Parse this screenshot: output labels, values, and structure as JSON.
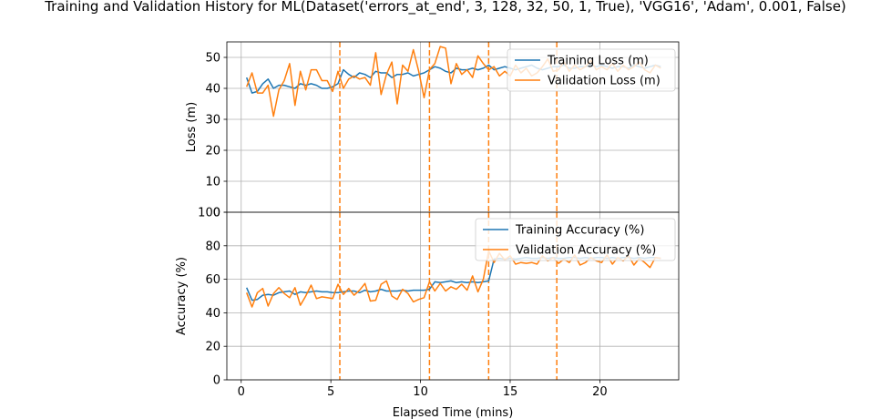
{
  "chart_data": {
    "title": "Training and Validation History for ML(Dataset('errors_at_end', 3, 128, 32, 50, 1, True), 'VGG16', 'Adam', 0.001, False)",
    "xlabel": "Elapsed Time (mins)",
    "xlim": [
      -0.8,
      24.4
    ],
    "xticks": [
      0,
      5,
      10,
      15,
      20
    ],
    "grid": true,
    "restart_lines": [
      5.5,
      10.5,
      13.8,
      17.6
    ],
    "colors": {
      "training": "#1f77b4",
      "validation": "#ff7f0e"
    },
    "panels": [
      {
        "id": "loss",
        "type": "line",
        "ylabel": "Loss (m)",
        "ylim": [
          0,
          55
        ],
        "yticks": [
          0,
          10,
          20,
          30,
          40,
          50
        ],
        "legend": "top-right",
        "series": [
          {
            "name": "Training Loss (m)",
            "key": "training",
            "x": [
              0.3,
              0.6,
              0.9,
              1.2,
              1.5,
              1.8,
              2.1,
              2.4,
              2.7,
              3.0,
              3.3,
              3.6,
              3.9,
              4.2,
              4.5,
              4.8,
              5.1,
              5.4,
              5.7,
              6.0,
              6.3,
              6.6,
              6.9,
              7.2,
              7.5,
              7.8,
              8.1,
              8.4,
              8.7,
              9.0,
              9.3,
              9.6,
              9.9,
              10.2,
              10.5,
              10.8,
              11.1,
              11.4,
              11.7,
              12.0,
              12.3,
              12.6,
              12.9,
              13.2,
              13.5,
              13.8,
              14.1,
              14.4,
              14.7,
              15.0,
              15.3,
              15.6,
              15.9,
              16.2,
              16.5,
              16.8,
              17.1,
              17.4,
              17.7,
              18.0,
              18.3,
              18.6,
              18.9,
              19.2,
              19.5,
              19.8,
              20.1,
              20.4,
              20.7,
              21.0,
              21.3,
              21.6,
              21.9,
              22.2,
              22.5,
              22.8,
              23.1,
              23.4
            ],
            "values": [
              43.5,
              38.5,
              39.0,
              41.5,
              43.0,
              40.0,
              41.0,
              41.0,
              40.5,
              40.0,
              41.5,
              41.0,
              41.5,
              41.0,
              40.0,
              40.0,
              40.5,
              41.5,
              46.0,
              44.5,
              43.5,
              45.0,
              44.5,
              43.5,
              45.5,
              45.0,
              45.0,
              43.5,
              44.5,
              44.5,
              45.0,
              44.0,
              44.5,
              45.0,
              46.0,
              47.0,
              46.5,
              45.5,
              45.0,
              46.5,
              46.0,
              46.0,
              46.5,
              46.0,
              46.5,
              47.5,
              46.0,
              46.5,
              47.0,
              46.5,
              46.0,
              46.5,
              47.0,
              47.5,
              46.5,
              46.0,
              46.5,
              47.0,
              47.0,
              47.5,
              46.5,
              46.5,
              47.0,
              47.0,
              47.5,
              47.0,
              47.5,
              47.0,
              46.5,
              47.0,
              47.0,
              46.5,
              47.5,
              47.0,
              46.5,
              47.0,
              47.5,
              47.0
            ]
          },
          {
            "name": "Validation Loss (m)",
            "key": "validation",
            "x": [
              0.3,
              0.6,
              0.9,
              1.2,
              1.5,
              1.8,
              2.1,
              2.4,
              2.7,
              3.0,
              3.3,
              3.6,
              3.9,
              4.2,
              4.5,
              4.8,
              5.1,
              5.4,
              5.7,
              6.0,
              6.3,
              6.6,
              6.9,
              7.2,
              7.5,
              7.8,
              8.1,
              8.4,
              8.7,
              9.0,
              9.3,
              9.6,
              9.9,
              10.2,
              10.5,
              10.8,
              11.1,
              11.4,
              11.7,
              12.0,
              12.3,
              12.6,
              12.9,
              13.2,
              13.5,
              13.8,
              14.1,
              14.4,
              14.7,
              15.0,
              15.3,
              15.6,
              15.9,
              16.2,
              16.5,
              16.8,
              17.1,
              17.4,
              17.7,
              18.0,
              18.3,
              18.6,
              18.9,
              19.2,
              19.5,
              19.8,
              20.1,
              20.4,
              20.7,
              21.0,
              21.3,
              21.6,
              21.9,
              22.2,
              22.5,
              22.8,
              23.1,
              23.4
            ],
            "values": [
              40.5,
              45.0,
              38.5,
              38.5,
              41.0,
              31.0,
              39.5,
              42.5,
              48.0,
              34.5,
              45.5,
              39.5,
              46.0,
              46.0,
              42.5,
              42.5,
              39.0,
              45.5,
              40.0,
              43.0,
              44.0,
              43.0,
              43.5,
              41.0,
              51.5,
              38.0,
              44.5,
              48.5,
              35.0,
              47.5,
              45.5,
              52.5,
              45.5,
              37.0,
              46.0,
              48.0,
              53.5,
              53.0,
              41.5,
              48.0,
              44.5,
              46.0,
              43.5,
              50.5,
              48.0,
              46.0,
              47.0,
              44.0,
              45.5,
              44.0,
              47.5,
              45.0,
              46.5,
              44.0,
              45.0,
              47.0,
              49.5,
              45.5,
              46.0,
              48.5,
              45.5,
              47.5,
              46.0,
              47.0,
              49.0,
              46.0,
              47.0,
              46.0,
              48.0,
              45.5,
              47.5,
              46.0,
              47.0,
              48.5,
              46.0,
              45.0,
              47.5,
              46.5
            ]
          }
        ]
      },
      {
        "id": "accuracy",
        "type": "line",
        "ylabel": "Accuracy (%)",
        "ylim": [
          0,
          100
        ],
        "yticks": [
          0,
          20,
          40,
          60,
          80,
          100
        ],
        "legend": "top-right",
        "series": [
          {
            "name": "Training Accuracy (%)",
            "key": "training",
            "x": [
              0.3,
              0.6,
              0.9,
              1.2,
              1.5,
              1.8,
              2.1,
              2.4,
              2.7,
              3.0,
              3.3,
              3.6,
              3.9,
              4.2,
              4.5,
              4.8,
              5.1,
              5.4,
              5.7,
              6.0,
              6.3,
              6.6,
              6.9,
              7.2,
              7.5,
              7.8,
              8.1,
              8.4,
              8.7,
              9.0,
              9.3,
              9.6,
              9.9,
              10.2,
              10.5,
              10.8,
              11.1,
              11.4,
              11.7,
              12.0,
              12.3,
              12.6,
              12.9,
              13.2,
              13.5,
              13.8,
              14.1,
              14.4,
              14.7,
              15.0,
              15.3,
              15.6,
              15.9,
              16.2,
              16.5,
              16.8,
              17.1,
              17.4,
              17.7,
              18.0,
              18.3,
              18.6,
              18.9,
              19.2,
              19.5,
              19.8,
              20.1,
              20.4,
              20.7,
              21.0,
              21.3,
              21.6,
              21.9,
              22.2,
              22.5,
              22.8,
              23.1,
              23.4
            ],
            "values": [
              55.0,
              47.5,
              48.0,
              50.5,
              51.0,
              50.5,
              52.0,
              52.5,
              53.0,
              51.0,
              52.5,
              52.0,
              52.5,
              53.0,
              52.5,
              52.5,
              52.0,
              52.0,
              52.5,
              53.0,
              53.0,
              52.0,
              53.5,
              52.5,
              53.0,
              54.0,
              53.0,
              53.0,
              53.0,
              53.5,
              53.0,
              53.5,
              53.5,
              53.5,
              54.0,
              58.5,
              58.0,
              58.5,
              59.0,
              58.0,
              58.5,
              58.0,
              58.5,
              58.0,
              58.5,
              59.0,
              72.0,
              72.5,
              72.0,
              72.5,
              72.0,
              72.5,
              73.0,
              72.5,
              72.5,
              73.0,
              72.5,
              73.0,
              72.5,
              72.5,
              73.0,
              73.0,
              72.5,
              73.0,
              72.5,
              73.0,
              73.0,
              72.5,
              73.0,
              72.5,
              73.0,
              73.0,
              72.5,
              73.0,
              72.5,
              73.0,
              73.0,
              72.5
            ]
          },
          {
            "name": "Validation Accuracy (%)",
            "key": "validation",
            "x": [
              0.3,
              0.6,
              0.9,
              1.2,
              1.5,
              1.8,
              2.1,
              2.4,
              2.7,
              3.0,
              3.3,
              3.6,
              3.9,
              4.2,
              4.5,
              4.8,
              5.1,
              5.4,
              5.7,
              6.0,
              6.3,
              6.6,
              6.9,
              7.2,
              7.5,
              7.8,
              8.1,
              8.4,
              8.7,
              9.0,
              9.3,
              9.6,
              9.9,
              10.2,
              10.5,
              10.8,
              11.1,
              11.4,
              11.7,
              12.0,
              12.3,
              12.6,
              12.9,
              13.2,
              13.5,
              13.8,
              14.1,
              14.4,
              14.7,
              15.0,
              15.3,
              15.6,
              15.9,
              16.2,
              16.5,
              16.8,
              17.1,
              17.4,
              17.7,
              18.0,
              18.3,
              18.6,
              18.9,
              19.2,
              19.5,
              19.8,
              20.1,
              20.4,
              20.7,
              21.0,
              21.3,
              21.6,
              21.9,
              22.2,
              22.5,
              22.8,
              23.1,
              23.4
            ],
            "values": [
              52.0,
              43.5,
              52.0,
              54.5,
              44.0,
              51.5,
              55.0,
              51.5,
              49.0,
              55.0,
              44.5,
              50.0,
              56.5,
              48.5,
              49.5,
              49.0,
              48.5,
              57.0,
              51.0,
              54.5,
              50.5,
              53.5,
              57.5,
              47.0,
              47.5,
              57.0,
              59.0,
              50.0,
              48.0,
              54.0,
              51.5,
              46.5,
              48.0,
              49.0,
              58.5,
              53.0,
              57.5,
              53.0,
              55.5,
              54.0,
              57.0,
              53.5,
              62.0,
              52.5,
              60.0,
              77.0,
              70.0,
              75.5,
              71.5,
              74.0,
              69.0,
              70.0,
              69.5,
              70.0,
              69.0,
              74.0,
              71.0,
              73.0,
              69.5,
              72.0,
              70.0,
              74.5,
              68.5,
              70.0,
              73.0,
              71.0,
              70.0,
              74.5,
              69.0,
              73.0,
              71.0,
              74.0,
              68.5,
              72.5,
              70.0,
              67.0,
              73.0,
              72.5
            ]
          }
        ]
      }
    ]
  }
}
